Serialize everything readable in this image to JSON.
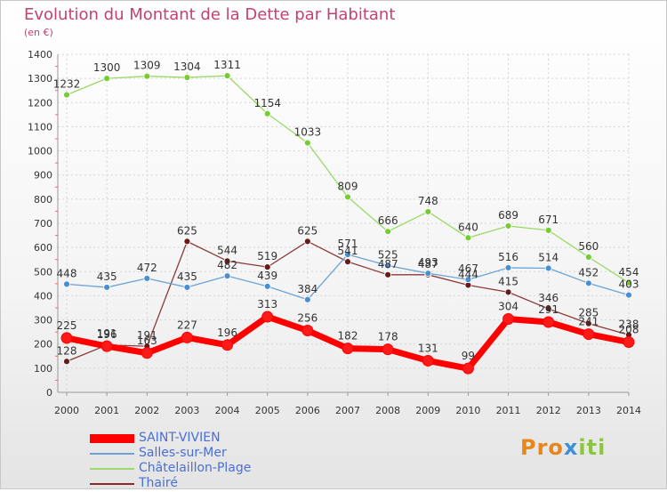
{
  "title": "Evolution du Montant de la Dette par Habitant",
  "subtitle": "(en €)",
  "logo": {
    "text_parts": [
      "Pro",
      "x",
      "iti"
    ]
  },
  "chart_data": {
    "type": "line",
    "x": [
      "2000",
      "2001",
      "2002",
      "2003",
      "2004",
      "2005",
      "2006",
      "2007",
      "2008",
      "2009",
      "2010",
      "2011",
      "2012",
      "2013",
      "2014"
    ],
    "ylim": [
      0,
      1400
    ],
    "yticks": [
      0,
      100,
      200,
      300,
      400,
      500,
      600,
      700,
      800,
      900,
      1000,
      1100,
      1200,
      1300,
      1400
    ],
    "grid": true,
    "legend_placement": "bottom-left",
    "series": [
      {
        "name": "SAINT-VIVIEN",
        "color": "#ff0000",
        "line_color": "#ff0000",
        "marker_color": "#ff1a1a",
        "width": 7,
        "radius": 6,
        "values": [
          225,
          191,
          163,
          227,
          196,
          313,
          256,
          182,
          178,
          131,
          99,
          304,
          291,
          241,
          208
        ],
        "labels": [
          "225",
          "191",
          "163",
          "227",
          "196",
          "313",
          "256",
          "182",
          "178",
          "131",
          "99",
          "304",
          "291",
          "241",
          "208"
        ]
      },
      {
        "name": "Salles-sur-Mer",
        "color": "#6ba3d6",
        "line_color": "#6ba3d6",
        "marker_color": "#4a8fd1",
        "width": 1.3,
        "radius": 3.5,
        "values": [
          448,
          435,
          472,
          435,
          482,
          439,
          384,
          571,
          525,
          493,
          467,
          516,
          514,
          452,
          403
        ],
        "labels": [
          "448",
          "435",
          "472",
          "435",
          "482",
          "439",
          "384",
          "571",
          "525",
          "493",
          "467",
          "516",
          "514",
          "452",
          "403"
        ]
      },
      {
        "name": "Châtelaillon-Plage",
        "color": "#99d966",
        "line_color": "#99d966",
        "marker_color": "#77cc33",
        "width": 1.3,
        "radius": 3.5,
        "values": [
          1232,
          1300,
          1309,
          1304,
          1311,
          1154,
          1033,
          809,
          666,
          748,
          640,
          689,
          671,
          560,
          454
        ],
        "labels": [
          "1232",
          "1300",
          "1309",
          "1304",
          "1311",
          "1154",
          "1033",
          "809",
          "666",
          "748",
          "640",
          "689",
          "671",
          "560",
          "454"
        ]
      },
      {
        "name": "Thairé",
        "color": "#8a2a2a",
        "line_color": "#8a3a3a",
        "marker_color": "#661a1a",
        "width": 1.3,
        "radius": 3.5,
        "values": [
          128,
          196,
          191,
          625,
          544,
          519,
          625,
          541,
          487,
          487,
          444,
          415,
          346,
          285,
          238
        ],
        "labels": [
          "128",
          "196",
          "191",
          "625",
          "544",
          "519",
          "625",
          "541",
          "487",
          "487",
          "444",
          "415",
          "346",
          "285",
          "238"
        ]
      }
    ]
  }
}
